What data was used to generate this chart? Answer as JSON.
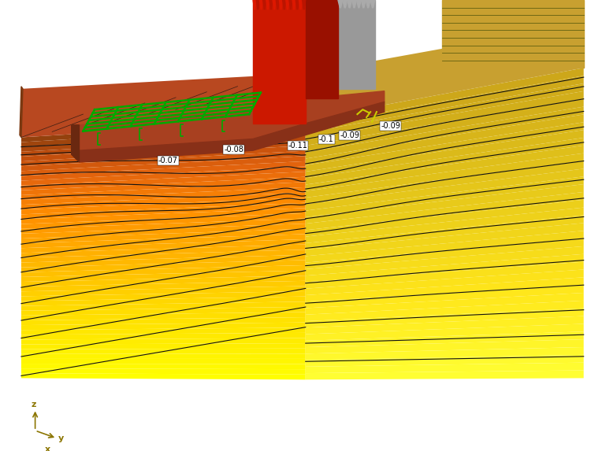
{
  "bg_color": "#ffffff",
  "axis_color": "#8B7500",
  "green_grid_color": "#00aa00",
  "contour_color": "#111111",
  "contour_lw": 0.8,
  "label_fontsize": 7,
  "contour_labels": [
    [
      "-0.07",
      210,
      208
    ],
    [
      "-0.08",
      295,
      194
    ],
    [
      "-0.11",
      378,
      189
    ],
    [
      "-0.1",
      415,
      181
    ],
    [
      "-0.09",
      445,
      175
    ],
    [
      "-0.09",
      498,
      163
    ]
  ],
  "soil_front_colors": [
    [
      0.0,
      [
        0.55,
        0.25,
        0.05
      ]
    ],
    [
      0.08,
      [
        0.75,
        0.3,
        0.05
      ]
    ],
    [
      0.18,
      [
        0.9,
        0.4,
        0.05
      ]
    ],
    [
      0.32,
      [
        1.0,
        0.55,
        0.0
      ]
    ],
    [
      0.5,
      [
        1.0,
        0.7,
        0.0
      ]
    ],
    [
      0.7,
      [
        1.0,
        0.85,
        0.0
      ]
    ],
    [
      1.0,
      [
        1.0,
        1.0,
        0.0
      ]
    ]
  ],
  "soil_right_colors": [
    [
      0.0,
      [
        0.8,
        0.65,
        0.1
      ]
    ],
    [
      0.35,
      [
        0.9,
        0.78,
        0.1
      ]
    ],
    [
      0.7,
      [
        1.0,
        0.9,
        0.1
      ]
    ],
    [
      1.0,
      [
        1.0,
        1.0,
        0.2
      ]
    ]
  ],
  "soil_top_color": "#b84820",
  "foundation_top_color": "#a03818",
  "col_front_color": "#cc1800",
  "col_side_color": "#991000",
  "col_gray_color": "#999999",
  "col_gray_side_color": "#777777"
}
